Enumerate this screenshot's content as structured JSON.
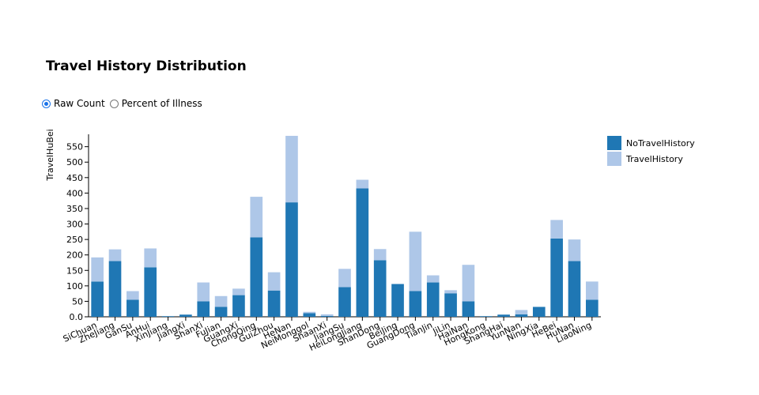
{
  "title": "Travel History Distribution",
  "mode_toggle": {
    "options": [
      {
        "label": "Raw Count",
        "checked": true
      },
      {
        "label": "Percent of Illness",
        "checked": false
      }
    ]
  },
  "colors": {
    "no_travel": "#1f77b4",
    "travel": "#aec7e8",
    "axis": "#000000"
  },
  "chart_data": {
    "type": "bar",
    "stacked": true,
    "title": "Travel History Distribution",
    "xlabel": "",
    "ylabel": "TravelHuBei",
    "ylim": [
      0,
      590
    ],
    "yticks": [
      0,
      50,
      100,
      150,
      200,
      250,
      300,
      350,
      400,
      450,
      500,
      550
    ],
    "ytick_labels": [
      "0.0",
      "50",
      "100",
      "150",
      "200",
      "250",
      "300",
      "350",
      "400",
      "450",
      "500",
      "550"
    ],
    "legend_position": "top-right",
    "categories": [
      "SiChuan",
      "ZheJiang",
      "GanSu",
      "AnHui",
      "XinJiang",
      "JiangXi",
      "ShanXi",
      "FuJian",
      "GuangXi",
      "ChongQing",
      "GuiZhou",
      "HeNan",
      "NeiMonggol",
      "ShaanXi",
      "JiangSu",
      "HeiLongJiang",
      "ShanDong",
      "BeiJing",
      "GuangDong",
      "TianJin",
      "JiLin",
      "HaiNan",
      "HongKong",
      "ShangHai",
      "YunNan",
      "NingXia",
      "HeBei",
      "HuNan",
      "LiaoNing"
    ],
    "series": [
      {
        "name": "NoTravelHistory",
        "values": [
          114,
          180,
          55,
          160,
          2,
          7,
          50,
          32,
          70,
          257,
          85,
          370,
          12,
          3,
          96,
          415,
          183,
          106,
          83,
          111,
          76,
          50,
          2,
          7,
          8,
          32,
          253,
          180,
          55
        ]
      },
      {
        "name": "TravelHistory",
        "values": [
          78,
          38,
          28,
          61,
          0,
          0,
          61,
          35,
          21,
          131,
          59,
          215,
          4,
          5,
          59,
          28,
          36,
          0,
          192,
          23,
          10,
          118,
          0,
          0,
          14,
          0,
          60,
          70,
          59
        ]
      }
    ]
  }
}
